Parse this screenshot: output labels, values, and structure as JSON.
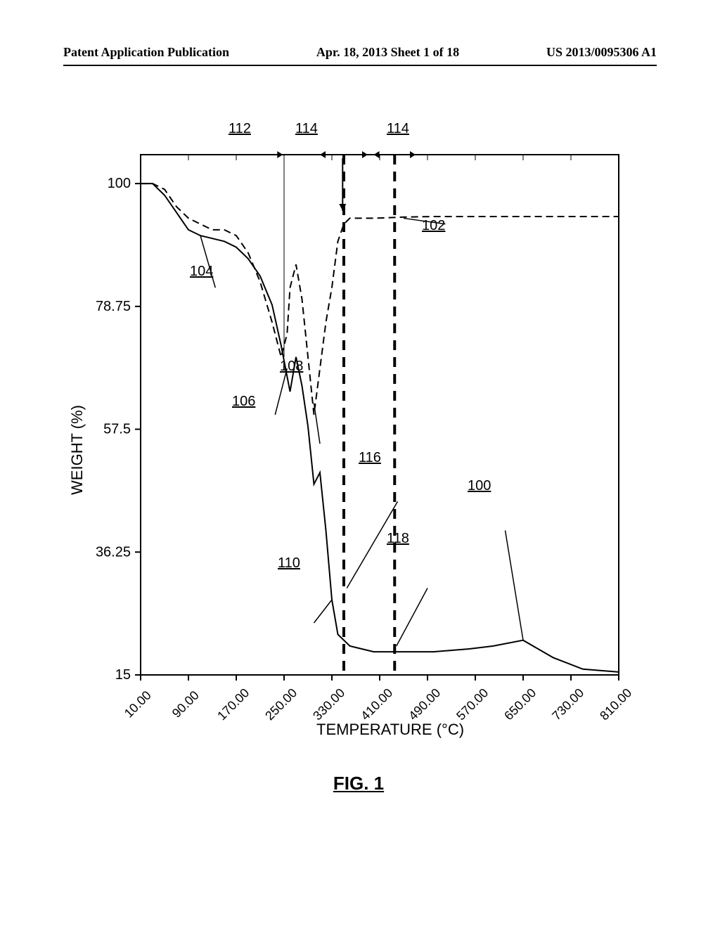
{
  "header": {
    "left": "Patent Application Publication",
    "center": "Apr. 18, 2013  Sheet 1 of 18",
    "right": "US 2013/0095306 A1"
  },
  "figure": {
    "caption": "FIG. 1",
    "xlabel": "TEMPERATURE (°C)",
    "ylabel": "WEIGHT (%)",
    "xticks": [
      "10.00",
      "90.00",
      "170.00",
      "250.00",
      "330.00",
      "410.00",
      "490.00",
      "570.00",
      "650.00",
      "730.00",
      "810.00"
    ],
    "yticks": [
      "15",
      "36.25",
      "57.5",
      "78.75",
      "100"
    ],
    "xlim": [
      10,
      810
    ],
    "ylim": [
      15,
      105
    ],
    "background_color": "#ffffff",
    "axis_color": "#000000",
    "line_width": 2,
    "dash_line_width": 2,
    "annotations": {
      "a100": "100",
      "a102": "102",
      "a104": "104",
      "a106": "106",
      "a108": "108",
      "a110": "110",
      "a112": "112",
      "a114a": "114",
      "a114b": "114",
      "a116": "116",
      "a118": "118"
    },
    "curve_solid": [
      [
        10,
        100
      ],
      [
        30,
        100
      ],
      [
        50,
        98
      ],
      [
        70,
        95
      ],
      [
        90,
        92
      ],
      [
        110,
        91
      ],
      [
        130,
        90.5
      ],
      [
        150,
        90
      ],
      [
        170,
        89
      ],
      [
        190,
        87
      ],
      [
        210,
        84
      ],
      [
        230,
        79
      ],
      [
        245,
        72
      ],
      [
        260,
        64
      ],
      [
        270,
        70
      ],
      [
        280,
        65
      ],
      [
        290,
        58
      ],
      [
        300,
        48
      ],
      [
        310,
        50
      ],
      [
        320,
        40
      ],
      [
        330,
        28
      ],
      [
        340,
        22
      ],
      [
        360,
        20
      ],
      [
        400,
        19
      ],
      [
        450,
        19
      ],
      [
        500,
        19
      ],
      [
        560,
        19.5
      ],
      [
        600,
        20
      ],
      [
        650,
        21
      ],
      [
        700,
        18
      ],
      [
        750,
        16
      ],
      [
        810,
        15.5
      ]
    ],
    "curve_dash": [
      [
        10,
        100
      ],
      [
        30,
        100
      ],
      [
        50,
        99
      ],
      [
        70,
        96
      ],
      [
        90,
        94
      ],
      [
        110,
        93
      ],
      [
        130,
        92
      ],
      [
        150,
        92
      ],
      [
        170,
        91
      ],
      [
        190,
        88
      ],
      [
        210,
        83
      ],
      [
        230,
        76
      ],
      [
        245,
        70
      ],
      [
        255,
        74
      ],
      [
        260,
        82
      ],
      [
        270,
        86
      ],
      [
        280,
        80
      ],
      [
        290,
        70
      ],
      [
        300,
        60
      ],
      [
        310,
        68
      ],
      [
        320,
        76
      ],
      [
        330,
        82
      ],
      [
        340,
        90
      ],
      [
        350,
        93
      ],
      [
        360,
        94
      ],
      [
        400,
        94
      ],
      [
        450,
        94.2
      ],
      [
        500,
        94.3
      ],
      [
        560,
        94.3
      ],
      [
        650,
        94.3
      ],
      [
        810,
        94.3
      ]
    ],
    "vline1_x": 350,
    "vline2_x": 435,
    "vtick1_x": 250,
    "varrow_x": 348
  }
}
